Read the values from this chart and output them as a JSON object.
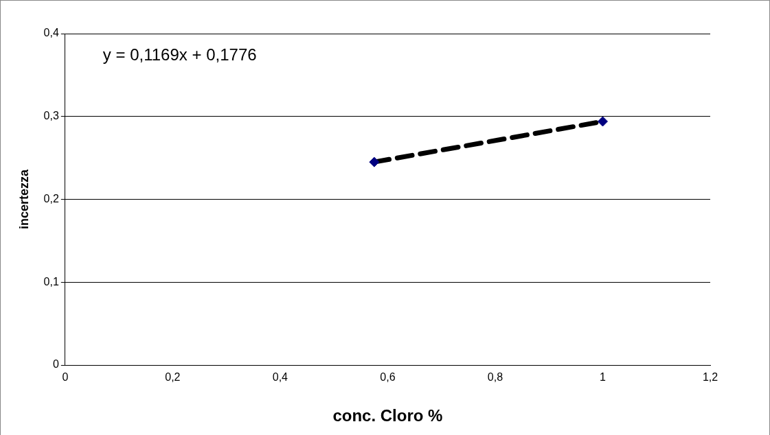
{
  "chart_data": {
    "type": "scatter",
    "xlabel": "conc. Cloro %",
    "ylabel": "incertezza",
    "annotations": [
      "y = 0,1169x + 0,1776"
    ],
    "x": [
      0.575,
      1
    ],
    "series": [
      {
        "type": "scatter",
        "color": "#000080",
        "values": [
          0.245,
          0.294
        ],
        "marker": "diamond"
      },
      {
        "type": "line",
        "color": "#000000",
        "values": [
          0.245,
          0.294
        ],
        "line_style": "dashed",
        "marker": "none"
      }
    ],
    "xlim": [
      0,
      1.2
    ],
    "xticks": [
      0,
      {
        "value": 0.2,
        "label": "0,2"
      },
      {
        "value": 0.4,
        "label": "0,4"
      },
      {
        "value": 0.6,
        "label": "0,6"
      },
      {
        "value": 0.8,
        "label": "0,8"
      },
      1,
      {
        "value": 1.2,
        "label": "1,2"
      }
    ],
    "ylim": [
      0,
      0.4
    ],
    "yticks": [
      0,
      {
        "value": 0.1,
        "label": "0,1"
      },
      {
        "value": 0.2,
        "label": "0,2"
      },
      {
        "value": 0.3,
        "label": "0,3"
      },
      {
        "value": 0.4,
        "label": "0,4"
      }
    ],
    "grid": "y",
    "legend": false
  }
}
